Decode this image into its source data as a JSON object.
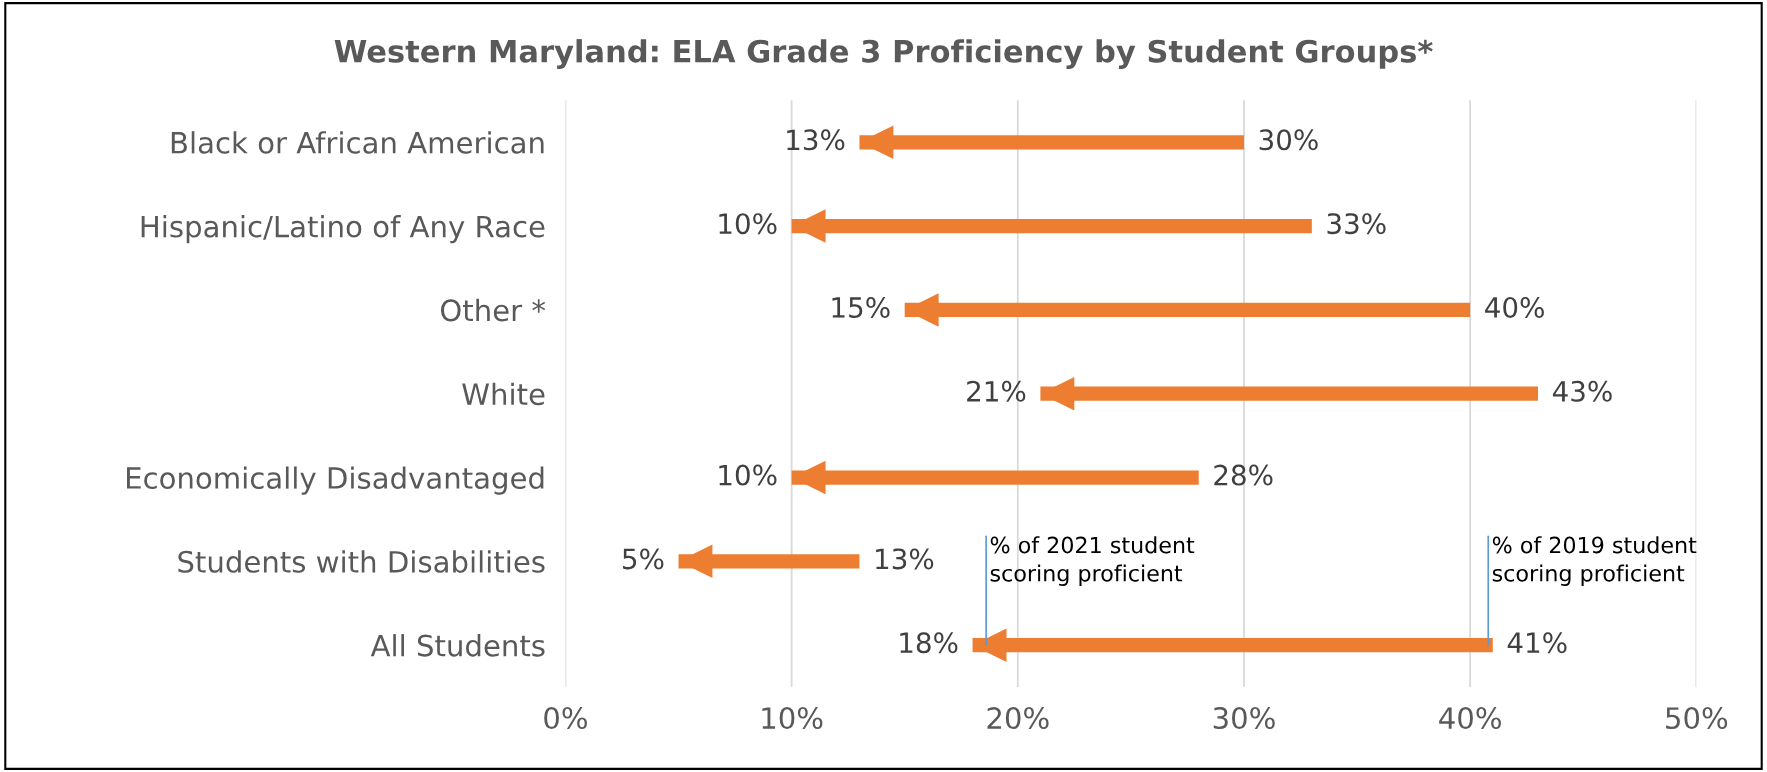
{
  "chart_data": {
    "type": "bar",
    "orientation": "horizontal",
    "title": "Western Maryland: ELA Grade 3 Proficiency by Student Groups*",
    "categories": [
      "Black or African American",
      "Hispanic/Latino of Any Race",
      "Other *",
      "White",
      "Economically Disadvantaged",
      "Students with Disabilities",
      "All Students"
    ],
    "base": [
      13,
      10,
      15,
      21,
      10,
      5,
      18
    ],
    "values": [
      17,
      23,
      25,
      22,
      18,
      8,
      23
    ],
    "color": "#ed7d31",
    "xlim": [
      0,
      50
    ],
    "xticks": [
      {
        "value": 0,
        "label": "0%"
      },
      {
        "value": 10,
        "label": "10%"
      },
      {
        "value": 20,
        "label": "20%"
      },
      {
        "value": 30,
        "label": "30%"
      },
      {
        "value": 40,
        "label": "40%"
      },
      {
        "value": 50,
        "label": "50%"
      }
    ],
    "grid": "x",
    "annotations": [
      {
        "text": "13%",
        "x": 13,
        "y": "Black or African American"
      },
      {
        "text": "30%",
        "x": 30,
        "y": "Black or African American"
      },
      {
        "text": "10%",
        "x": 10,
        "y": "Hispanic/Latino of Any Race"
      },
      {
        "text": "33%",
        "x": 33,
        "y": "Hispanic/Latino of Any Race"
      },
      {
        "text": "15%",
        "x": 15,
        "y": "Other *"
      },
      {
        "text": "40%",
        "x": 40,
        "y": "Other *"
      },
      {
        "text": "21%",
        "x": 21,
        "y": "White"
      },
      {
        "text": "43%",
        "x": 43,
        "y": "White"
      },
      {
        "text": "10%",
        "x": 10,
        "y": "Economically Disadvantaged"
      },
      {
        "text": "28%",
        "x": 28,
        "y": "Economically Disadvantaged"
      },
      {
        "text": "5%",
        "x": 5,
        "y": "Students with Disabilities"
      },
      {
        "text": "13%",
        "x": 13,
        "y": "Students with Disabilities"
      },
      {
        "text": "18%",
        "x": 18,
        "y": "All Students"
      },
      {
        "text": "41%",
        "x": 41,
        "y": "All Students"
      },
      {
        "text": "% of 2021 student\nscoring proficient",
        "x": 18,
        "y": "All Students"
      },
      {
        "text": "% of 2019 student\nscoring proficient",
        "x": 41,
        "y": "All Students"
      }
    ]
  }
}
